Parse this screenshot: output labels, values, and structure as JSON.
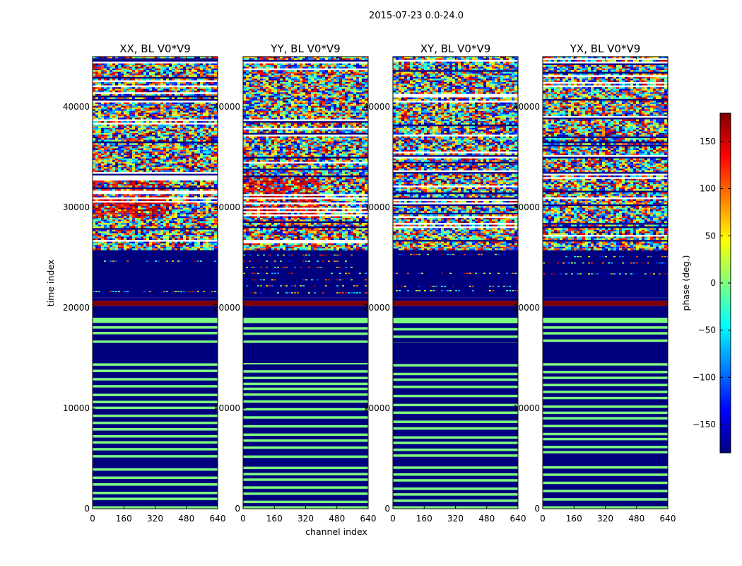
{
  "chart_data": {
    "type": "heatmap",
    "suptitle": "2015-07-23 0.0-24.0",
    "xlabel": "channel index",
    "ylabel": "time index",
    "xlim": [
      0,
      640
    ],
    "ylim": [
      0,
      45000
    ],
    "xticks": [
      0,
      160,
      320,
      480,
      640
    ],
    "yticks": [
      0,
      10000,
      20000,
      30000,
      40000
    ],
    "xtick_labels": [
      "0",
      "160",
      "320",
      "480",
      "640"
    ],
    "ytick_labels": [
      "0",
      "10000",
      "20000",
      "30000",
      "40000"
    ],
    "colorbar": {
      "label": "phase (deg.)",
      "range": [
        -180,
        180
      ],
      "ticks": [
        150,
        100,
        50,
        0,
        -50,
        -100,
        -150
      ],
      "tick_labels": [
        "150",
        "100",
        "50",
        "0",
        "−50",
        "−100",
        "−150"
      ],
      "colormap": [
        "#00007f",
        "#0000ff",
        "#007fff",
        "#00ffff",
        "#7fff7f",
        "#ffff00",
        "#ff7f00",
        "#ff0000",
        "#7f0000"
      ]
    },
    "panels": [
      {
        "title": "XX, BL V0*V9"
      },
      {
        "title": "YY, BL V0*V9"
      },
      {
        "title": "XY, BL V0*V9"
      },
      {
        "title": "YX, BL V0*V9"
      }
    ],
    "time_bands": [
      {
        "t0": 0,
        "t1": 18500,
        "pattern": "stripes",
        "colors": [
          "#00007f",
          "#7fff7f"
        ],
        "period": 700
      },
      {
        "t0": 4300,
        "t1": 5000,
        "pattern": "solid",
        "color": "#00007f"
      },
      {
        "t0": 14500,
        "t1": 16500,
        "pattern": "solid",
        "color": "#00007f"
      },
      {
        "t0": 18500,
        "t1": 19000,
        "pattern": "solid",
        "color": "#7fff7f"
      },
      {
        "t0": 19000,
        "t1": 20200,
        "pattern": "solid",
        "color": "#00007f"
      },
      {
        "t0": 20200,
        "t1": 20700,
        "pattern": "solid",
        "color": "#7f0000"
      },
      {
        "t0": 20700,
        "t1": 21000,
        "pattern": "solid",
        "color": "#00007f"
      },
      {
        "t0": 21000,
        "t1": 25800,
        "pattern": "sparse",
        "color": "#00007f"
      },
      {
        "t0": 25800,
        "t1": 45000,
        "pattern": "noise"
      }
    ]
  }
}
